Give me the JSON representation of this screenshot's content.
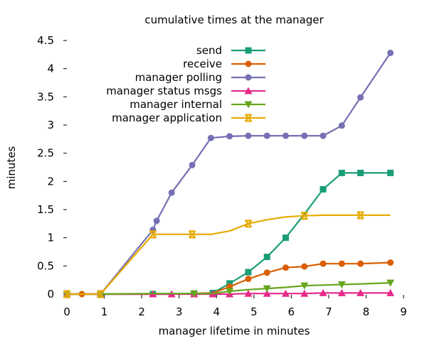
{
  "chart_data": {
    "type": "line",
    "title": "cumulative times at the manager",
    "xlabel": "manager lifetime in minutes",
    "ylabel": "minutes",
    "xlim": [
      0,
      9
    ],
    "ylim": [
      0,
      4.5
    ],
    "xticks": [
      "0",
      "1",
      "2",
      "3",
      "4",
      "5",
      "6",
      "7",
      "8",
      "9"
    ],
    "yticks": [
      "0",
      "0.5",
      "1",
      "1.5",
      "2",
      "2.5",
      "3",
      "3.5",
      "4",
      "4.5"
    ],
    "legend_position": "top-right",
    "grid": false,
    "series": [
      {
        "name": "send",
        "color": "#1a9e77",
        "marker": "square",
        "x": [
          0,
          0.4,
          0.9,
          2.3,
          2.4,
          2.8,
          3.4,
          3.9,
          4.35,
          4.85,
          5.35,
          5.85,
          6.35,
          6.85,
          7.35,
          7.85,
          8.65
        ],
        "y": [
          0,
          0,
          0,
          0,
          0,
          0,
          0.01,
          0.02,
          0.19,
          0.39,
          0.66,
          1.0,
          1.42,
          1.86,
          2.15,
          2.15,
          2.15
        ],
        "marker_x": [
          0,
          0.9,
          2.3,
          3.4,
          3.9,
          4.35,
          4.85,
          5.35,
          5.85,
          6.85,
          7.35,
          7.85,
          8.65
        ]
      },
      {
        "name": "receive",
        "color": "#d95f02",
        "marker": "circle",
        "x": [
          0,
          0.4,
          0.9,
          2.3,
          2.8,
          3.4,
          3.9,
          4.35,
          4.85,
          5.35,
          5.85,
          6.35,
          6.85,
          7.35,
          7.85,
          8.65
        ],
        "y": [
          0,
          0,
          0,
          0,
          0,
          0.01,
          0.02,
          0.13,
          0.27,
          0.38,
          0.47,
          0.49,
          0.54,
          0.54,
          0.54,
          0.56
        ],
        "marker_x": [
          0,
          0.4,
          0.9,
          4.35,
          4.85,
          5.35,
          5.85,
          6.35,
          6.85,
          7.35,
          7.85,
          8.65
        ]
      },
      {
        "name": "manager polling",
        "color": "#7570b3",
        "marker": "circle",
        "x": [
          0,
          0.9,
          2.3,
          2.4,
          2.8,
          3.35,
          3.85,
          4.35,
          4.85,
          5.35,
          5.85,
          6.35,
          6.85,
          7.35,
          7.85,
          8.65
        ],
        "y": [
          0,
          0,
          1.14,
          1.3,
          1.8,
          2.29,
          2.77,
          2.8,
          2.81,
          2.81,
          2.81,
          2.81,
          2.81,
          2.99,
          3.49,
          4.28
        ],
        "marker_x": [
          0,
          0.9,
          2.3,
          2.4,
          2.8,
          3.35,
          3.85,
          4.35,
          4.85,
          5.35,
          5.85,
          6.35,
          6.85,
          7.35,
          7.85,
          8.65
        ]
      },
      {
        "name": "manager status msgs",
        "color": "#e7298a",
        "marker": "triangle",
        "x": [
          0,
          0.9,
          2.3,
          2.8,
          3.4,
          3.9,
          4.35,
          4.85,
          5.35,
          5.85,
          6.35,
          6.85,
          7.35,
          7.85,
          8.65
        ],
        "y": [
          0,
          0,
          0,
          0,
          0,
          0,
          0,
          0.01,
          0.01,
          0.01,
          0.01,
          0.02,
          0.02,
          0.02,
          0.02
        ],
        "marker_x": [
          0,
          0.9,
          2.3,
          2.8,
          3.4,
          3.9,
          4.35,
          4.85,
          5.35,
          5.85,
          6.35,
          6.85,
          7.35,
          7.85,
          8.65
        ]
      },
      {
        "name": "manager internal",
        "color": "#66a61e",
        "marker": "triangle-down",
        "x": [
          0,
          0.9,
          2.3,
          2.8,
          3.4,
          3.9,
          4.35,
          4.85,
          5.35,
          5.85,
          6.35,
          6.85,
          7.35,
          7.85,
          8.65
        ],
        "y": [
          0,
          0,
          0.01,
          0.01,
          0.01,
          0.01,
          0.05,
          0.08,
          0.1,
          0.12,
          0.15,
          0.16,
          0.17,
          0.18,
          0.2
        ],
        "marker_x": [
          0,
          0.9,
          3.4,
          4.35,
          5.35,
          6.35,
          7.35,
          8.65
        ]
      },
      {
        "name": "manager application",
        "color": "#e6ab02",
        "marker": "x",
        "x": [
          0,
          0.9,
          2.3,
          2.8,
          3.35,
          3.85,
          4.35,
          4.85,
          5.35,
          5.85,
          6.35,
          6.85,
          7.35,
          7.85,
          8.65
        ],
        "y": [
          0,
          0,
          1.06,
          1.06,
          1.06,
          1.06,
          1.12,
          1.25,
          1.32,
          1.37,
          1.39,
          1.4,
          1.4,
          1.4,
          1.4
        ],
        "marker_x": [
          0,
          0.9,
          2.3,
          3.35,
          4.85,
          6.35,
          7.85
        ]
      }
    ]
  }
}
